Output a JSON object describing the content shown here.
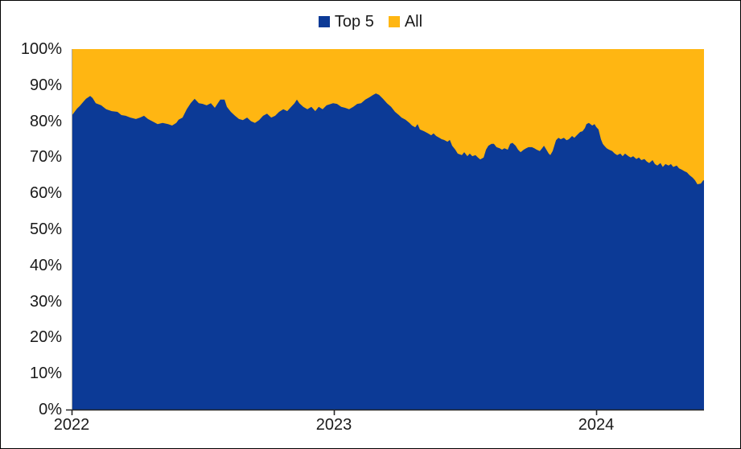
{
  "chart_data": {
    "type": "area",
    "subtype": "100-percent-stacked",
    "title": "",
    "legend_position": "top-center",
    "grid": false,
    "colors": {
      "top5": "#0C3A96",
      "all": "#FFB612",
      "text": "#1a1a1a",
      "x_axis": "#262626",
      "y_axis": "#a6a6a6"
    },
    "x_axis": {
      "tick_labels": [
        "2022",
        "2023",
        "2024"
      ],
      "tick_values": [
        2022,
        2023,
        2024
      ],
      "range": [
        2022.0,
        2024.41
      ]
    },
    "y_axis": {
      "tick_labels": [
        "100%",
        "90%",
        "80%",
        "70%",
        "60%",
        "50%",
        "40%",
        "30%",
        "20%",
        "10%",
        "0%"
      ],
      "tick_values": [
        100,
        90,
        80,
        70,
        60,
        50,
        40,
        30,
        20,
        10,
        0
      ],
      "range": [
        0,
        100
      ]
    },
    "series": [
      {
        "name": "Top 5",
        "color": "#0C3A96",
        "points": [
          [
            2022.0,
            81.5
          ],
          [
            2022.021,
            83.5
          ],
          [
            2022.031,
            84.2
          ],
          [
            2022.046,
            85.5
          ],
          [
            2022.055,
            86.2
          ],
          [
            2022.071,
            87.0
          ],
          [
            2022.08,
            86.4
          ],
          [
            2022.092,
            85.0
          ],
          [
            2022.113,
            84.4
          ],
          [
            2022.132,
            83.3
          ],
          [
            2022.153,
            82.8
          ],
          [
            2022.175,
            82.6
          ],
          [
            2022.19,
            81.7
          ],
          [
            2022.206,
            81.5
          ],
          [
            2022.224,
            81.0
          ],
          [
            2022.245,
            80.6
          ],
          [
            2022.261,
            81.0
          ],
          [
            2022.276,
            81.5
          ],
          [
            2022.291,
            80.6
          ],
          [
            2022.307,
            80.0
          ],
          [
            2022.328,
            79.2
          ],
          [
            2022.347,
            79.5
          ],
          [
            2022.368,
            79.2
          ],
          [
            2022.383,
            78.8
          ],
          [
            2022.399,
            79.5
          ],
          [
            2022.408,
            80.4
          ],
          [
            2022.423,
            81.0
          ],
          [
            2022.439,
            83.3
          ],
          [
            2022.454,
            85.0
          ],
          [
            2022.469,
            86.2
          ],
          [
            2022.485,
            85.0
          ],
          [
            2022.5,
            84.8
          ],
          [
            2022.515,
            84.4
          ],
          [
            2022.531,
            85.0
          ],
          [
            2022.546,
            83.7
          ],
          [
            2022.567,
            86.0
          ],
          [
            2022.583,
            86.0
          ],
          [
            2022.592,
            84.0
          ],
          [
            2022.607,
            82.6
          ],
          [
            2022.623,
            81.5
          ],
          [
            2022.638,
            80.6
          ],
          [
            2022.653,
            80.3
          ],
          [
            2022.669,
            81.0
          ],
          [
            2022.684,
            80.0
          ],
          [
            2022.699,
            79.5
          ],
          [
            2022.715,
            80.3
          ],
          [
            2022.73,
            81.5
          ],
          [
            2022.745,
            82.1
          ],
          [
            2022.761,
            81.0
          ],
          [
            2022.776,
            81.5
          ],
          [
            2022.791,
            82.6
          ],
          [
            2022.807,
            83.3
          ],
          [
            2022.822,
            82.8
          ],
          [
            2022.837,
            84.0
          ],
          [
            2022.85,
            85.0
          ],
          [
            2022.859,
            86.0
          ],
          [
            2022.868,
            85.0
          ],
          [
            2022.883,
            84.0
          ],
          [
            2022.899,
            83.3
          ],
          [
            2022.914,
            84.0
          ],
          [
            2022.929,
            82.8
          ],
          [
            2022.942,
            84.0
          ],
          [
            2022.957,
            83.3
          ],
          [
            2022.972,
            84.4
          ],
          [
            2022.997,
            85.0
          ],
          [
            2023.012,
            84.8
          ],
          [
            2023.028,
            84.0
          ],
          [
            2023.043,
            83.7
          ],
          [
            2023.058,
            83.3
          ],
          [
            2023.074,
            84.0
          ],
          [
            2023.089,
            84.8
          ],
          [
            2023.104,
            85.0
          ],
          [
            2023.12,
            86.0
          ],
          [
            2023.135,
            86.6
          ],
          [
            2023.15,
            87.3
          ],
          [
            2023.16,
            87.7
          ],
          [
            2023.172,
            87.3
          ],
          [
            2023.187,
            86.2
          ],
          [
            2023.202,
            85.0
          ],
          [
            2023.218,
            84.0
          ],
          [
            2023.233,
            82.6
          ],
          [
            2023.248,
            81.7
          ],
          [
            2023.258,
            81.0
          ],
          [
            2023.273,
            80.4
          ],
          [
            2023.288,
            79.5
          ],
          [
            2023.298,
            78.8
          ],
          [
            2023.31,
            78.3
          ],
          [
            2023.319,
            79.2
          ],
          [
            2023.328,
            77.7
          ],
          [
            2023.344,
            77.2
          ],
          [
            2023.359,
            76.6
          ],
          [
            2023.371,
            76.1
          ],
          [
            2023.38,
            76.6
          ],
          [
            2023.39,
            75.9
          ],
          [
            2023.402,
            75.4
          ],
          [
            2023.411,
            75.0
          ],
          [
            2023.42,
            74.8
          ],
          [
            2023.433,
            74.3
          ],
          [
            2023.442,
            74.8
          ],
          [
            2023.451,
            73.2
          ],
          [
            2023.463,
            72.1
          ],
          [
            2023.472,
            71.0
          ],
          [
            2023.488,
            70.6
          ],
          [
            2023.497,
            71.4
          ],
          [
            2023.509,
            70.3
          ],
          [
            2023.518,
            71.0
          ],
          [
            2023.528,
            70.3
          ],
          [
            2023.54,
            70.6
          ],
          [
            2023.549,
            69.9
          ],
          [
            2023.558,
            69.4
          ],
          [
            2023.571,
            69.9
          ],
          [
            2023.58,
            72.1
          ],
          [
            2023.589,
            73.2
          ],
          [
            2023.601,
            73.7
          ],
          [
            2023.61,
            73.7
          ],
          [
            2023.62,
            72.8
          ],
          [
            2023.632,
            72.5
          ],
          [
            2023.641,
            72.1
          ],
          [
            2023.65,
            72.5
          ],
          [
            2023.663,
            72.1
          ],
          [
            2023.672,
            73.7
          ],
          [
            2023.681,
            74.0
          ],
          [
            2023.693,
            73.2
          ],
          [
            2023.702,
            72.1
          ],
          [
            2023.712,
            71.4
          ],
          [
            2023.724,
            72.1
          ],
          [
            2023.733,
            72.5
          ],
          [
            2023.742,
            72.8
          ],
          [
            2023.755,
            72.8
          ],
          [
            2023.764,
            72.5
          ],
          [
            2023.773,
            72.1
          ],
          [
            2023.785,
            71.7
          ],
          [
            2023.794,
            72.5
          ],
          [
            2023.801,
            73.2
          ],
          [
            2023.81,
            72.1
          ],
          [
            2023.819,
            71.0
          ],
          [
            2023.825,
            70.6
          ],
          [
            2023.834,
            71.7
          ],
          [
            2023.847,
            74.7
          ],
          [
            2023.856,
            75.4
          ],
          [
            2023.865,
            75.0
          ],
          [
            2023.877,
            75.4
          ],
          [
            2023.887,
            74.7
          ],
          [
            2023.896,
            75.0
          ],
          [
            2023.908,
            75.9
          ],
          [
            2023.917,
            75.4
          ],
          [
            2023.926,
            76.1
          ],
          [
            2023.939,
            77.0
          ],
          [
            2023.948,
            77.2
          ],
          [
            2023.957,
            78.1
          ],
          [
            2023.963,
            79.2
          ],
          [
            2023.972,
            79.5
          ],
          [
            2023.985,
            78.8
          ],
          [
            2023.994,
            79.2
          ],
          [
            2024.0,
            78.4
          ],
          [
            2024.009,
            77.7
          ],
          [
            2024.018,
            75.0
          ],
          [
            2024.025,
            73.7
          ],
          [
            2024.031,
            73.2
          ],
          [
            2024.04,
            72.5
          ],
          [
            2024.049,
            72.1
          ],
          [
            2024.061,
            71.7
          ],
          [
            2024.071,
            71.0
          ],
          [
            2024.08,
            70.6
          ],
          [
            2024.092,
            71.0
          ],
          [
            2024.101,
            70.3
          ],
          [
            2024.11,
            71.0
          ],
          [
            2024.123,
            70.3
          ],
          [
            2024.132,
            69.9
          ],
          [
            2024.141,
            70.3
          ],
          [
            2024.153,
            69.5
          ],
          [
            2024.163,
            69.9
          ],
          [
            2024.172,
            69.2
          ],
          [
            2024.184,
            69.5
          ],
          [
            2024.193,
            68.8
          ],
          [
            2024.202,
            68.4
          ],
          [
            2024.215,
            69.2
          ],
          [
            2024.224,
            68.1
          ],
          [
            2024.233,
            67.7
          ],
          [
            2024.245,
            68.4
          ],
          [
            2024.254,
            67.3
          ],
          [
            2024.264,
            68.1
          ],
          [
            2024.276,
            67.7
          ],
          [
            2024.285,
            68.1
          ],
          [
            2024.294,
            67.3
          ],
          [
            2024.307,
            67.7
          ],
          [
            2024.316,
            66.9
          ],
          [
            2024.325,
            66.6
          ],
          [
            2024.337,
            66.1
          ],
          [
            2024.346,
            65.8
          ],
          [
            2024.356,
            65.0
          ],
          [
            2024.368,
            64.3
          ],
          [
            2024.377,
            63.6
          ],
          [
            2024.386,
            62.5
          ],
          [
            2024.399,
            62.7
          ],
          [
            2024.408,
            63.6
          ]
        ]
      },
      {
        "name": "All",
        "color": "#FFB612",
        "note": "remainder up to 100%"
      }
    ]
  },
  "legend": {
    "top5_label": "Top 5",
    "all_label": "All"
  }
}
